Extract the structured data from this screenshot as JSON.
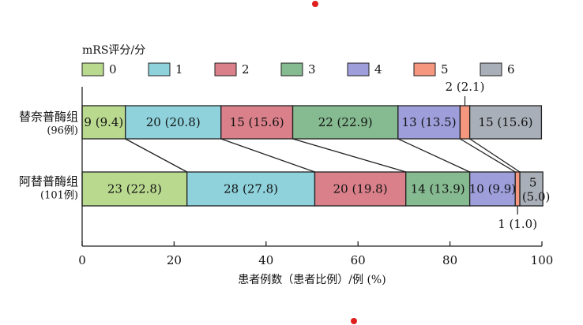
{
  "chart_data": {
    "type": "bar",
    "orientation": "horizontal",
    "stacked": true,
    "legend_title": "mRS评分/分",
    "legend_placement": "top",
    "categories": [
      {
        "label": "替奈普酶组",
        "sublabel": "(96例)"
      },
      {
        "label": "阿替普酶组",
        "sublabel": "(101例)"
      }
    ],
    "series": [
      {
        "name": "0",
        "color": "#b9d98f",
        "values": [
          9.4,
          22.8
        ],
        "labels": [
          "9 (9.4)",
          "23 (22.8)"
        ]
      },
      {
        "name": "1",
        "color": "#8fd2dc",
        "values": [
          20.8,
          27.8
        ],
        "labels": [
          "20 (20.8)",
          "28 (27.8)"
        ]
      },
      {
        "name": "2",
        "color": "#d9808a",
        "values": [
          15.6,
          19.8
        ],
        "labels": [
          "15 (15.6)",
          "20 (19.8)"
        ]
      },
      {
        "name": "3",
        "color": "#86ba90",
        "values": [
          22.9,
          13.9
        ],
        "labels": [
          "22 (22.9)",
          "14 (13.9)"
        ]
      },
      {
        "name": "4",
        "color": "#9e9edb",
        "values": [
          13.5,
          9.9
        ],
        "labels": [
          "13 (13.5)",
          "10 (9.9)"
        ]
      },
      {
        "name": "5",
        "color": "#f5977e",
        "values": [
          2.1,
          1.0
        ],
        "labels": [
          "2 (2.1)",
          "1 (1.0)"
        ]
      },
      {
        "name": "6",
        "color": "#a9afb8",
        "values": [
          15.6,
          5.0
        ],
        "labels": [
          "15 (15.6)",
          "5 (5.0)"
        ]
      }
    ],
    "xlabel": "患者例数（患者比例）/例 (%)",
    "xlim": [
      0,
      100
    ],
    "xticks": [
      0,
      20,
      40,
      60,
      80,
      100
    ],
    "grid": false,
    "connector_lines": true
  }
}
